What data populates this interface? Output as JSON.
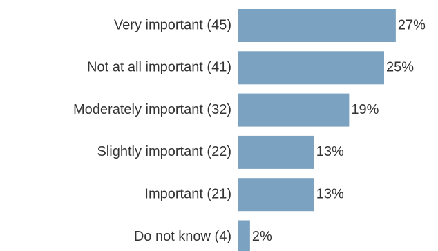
{
  "chart_data": {
    "type": "bar",
    "orientation": "horizontal",
    "categories": [
      "Very important (45)",
      "Not at all important (41)",
      "Moderately important (32)",
      "Slightly important (22)",
      "Important (21)",
      "Do not know (4)"
    ],
    "values": [
      27,
      25,
      19,
      13,
      13,
      2
    ],
    "value_labels": [
      "27%",
      "25%",
      "19%",
      "13%",
      "13%",
      "2%"
    ],
    "color": "#7ba3c1"
  }
}
